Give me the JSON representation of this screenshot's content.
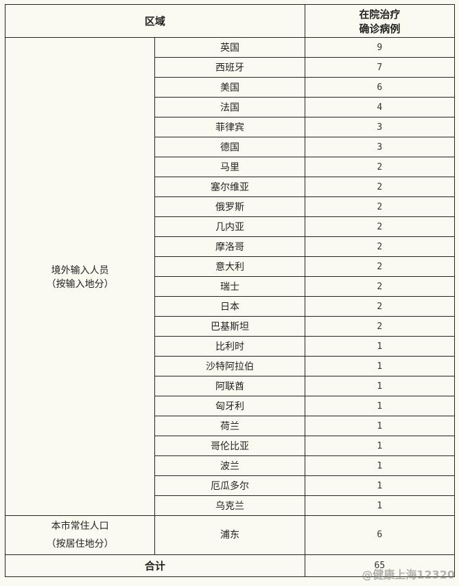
{
  "header": {
    "region": "区域",
    "count_line1": "在院治疗",
    "count_line2": "确诊病例"
  },
  "imported": {
    "label_line1": "境外输入人员",
    "label_line2": "（按输入地分）",
    "rows": [
      {
        "place": "英国",
        "count": "9"
      },
      {
        "place": "西班牙",
        "count": "7"
      },
      {
        "place": "美国",
        "count": "6"
      },
      {
        "place": "法国",
        "count": "4"
      },
      {
        "place": "菲律宾",
        "count": "3"
      },
      {
        "place": "德国",
        "count": "3"
      },
      {
        "place": "马里",
        "count": "2"
      },
      {
        "place": "塞尔维亚",
        "count": "2"
      },
      {
        "place": "俄罗斯",
        "count": "2"
      },
      {
        "place": "几内亚",
        "count": "2"
      },
      {
        "place": "摩洛哥",
        "count": "2"
      },
      {
        "place": "意大利",
        "count": "2"
      },
      {
        "place": "瑞士",
        "count": "2"
      },
      {
        "place": "日本",
        "count": "2"
      },
      {
        "place": "巴基斯坦",
        "count": "2"
      },
      {
        "place": "比利时",
        "count": "1"
      },
      {
        "place": "沙特阿拉伯",
        "count": "1"
      },
      {
        "place": "阿联酋",
        "count": "1"
      },
      {
        "place": "匈牙利",
        "count": "1"
      },
      {
        "place": "荷兰",
        "count": "1"
      },
      {
        "place": "哥伦比亚",
        "count": "1"
      },
      {
        "place": "波兰",
        "count": "1"
      },
      {
        "place": "厄瓜多尔",
        "count": "1"
      },
      {
        "place": "乌克兰",
        "count": "1"
      }
    ]
  },
  "local": {
    "label_line1": "本市常住人口",
    "label_line2": "（按居住地分）",
    "place": "浦东",
    "count": "6"
  },
  "total": {
    "label": "合计",
    "count": "65"
  },
  "watermark": "@健康上海12320"
}
